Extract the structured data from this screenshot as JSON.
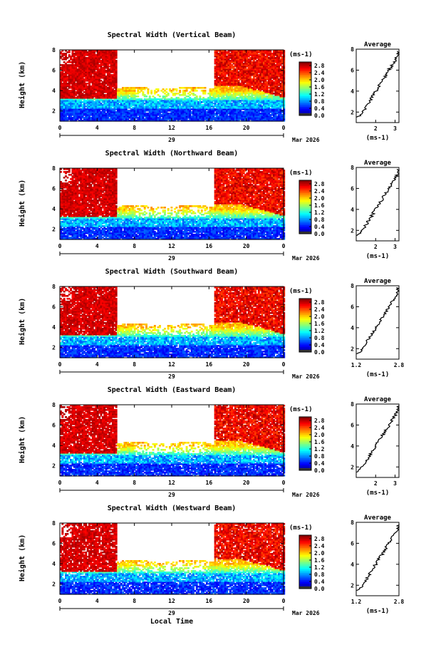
{
  "figure": {
    "x_axis_title": "Local Time",
    "month_label": "Mar 2026",
    "day_label": "29",
    "x_ticks": [
      "0",
      "4",
      "8",
      "12",
      "16",
      "20",
      "0"
    ],
    "y_ticks": [
      "2",
      "4",
      "6",
      "8"
    ],
    "height_label": "Height (km)",
    "colorbar_unit": "(ms-1)",
    "colorbar_ticks": [
      "2.8",
      "2.4",
      "2.0",
      "1.6",
      "1.2",
      "0.8",
      "0.4",
      "0.0"
    ],
    "average_title": "Average",
    "average_unit": "(ms-1)"
  },
  "chart_data": [
    {
      "type": "heatmap",
      "title": "Spectral Width (Vertical Beam)",
      "ylabel": "Height (km)",
      "xlabel": "Local Time",
      "x_range": [
        0,
        24
      ],
      "y_range": [
        1,
        8
      ],
      "colorbar_range": [
        0,
        3.0
      ],
      "profile": {
        "ticks": [
          "2",
          "3"
        ],
        "xlim": [
          1,
          3.2
        ]
      }
    },
    {
      "type": "heatmap",
      "title": "Spectral Width (Northward Beam)",
      "ylabel": "Height (km)",
      "xlabel": "Local Time",
      "x_range": [
        0,
        24
      ],
      "y_range": [
        1,
        8
      ],
      "colorbar_range": [
        0,
        3.0
      ],
      "profile": {
        "ticks": [
          "2",
          "3"
        ],
        "xlim": [
          1,
          3.2
        ]
      }
    },
    {
      "type": "heatmap",
      "title": "Spectral Width (Southward Beam)",
      "ylabel": "Height (km)",
      "xlabel": "Local Time",
      "x_range": [
        0,
        24
      ],
      "y_range": [
        1,
        8
      ],
      "colorbar_range": [
        0,
        3.0
      ],
      "profile": {
        "ticks": [
          "1.2",
          "2.8"
        ],
        "xlim": [
          1.2,
          2.8
        ]
      }
    },
    {
      "type": "heatmap",
      "title": "Spectral Width (Eastward Beam)",
      "ylabel": "Height (km)",
      "xlabel": "Local Time",
      "x_range": [
        0,
        24
      ],
      "y_range": [
        1,
        8
      ],
      "colorbar_range": [
        0,
        3.0
      ],
      "profile": {
        "ticks": [
          "2",
          "3"
        ],
        "xlim": [
          1,
          3.2
        ]
      }
    },
    {
      "type": "heatmap",
      "title": "Spectral Width (Westward Beam)",
      "ylabel": "Height (km)",
      "xlabel": "Local Time",
      "x_range": [
        0,
        24
      ],
      "y_range": [
        1,
        8
      ],
      "colorbar_range": [
        0,
        3.0
      ],
      "profile": {
        "ticks": [
          "1.2",
          "2.8"
        ],
        "xlim": [
          1.2,
          2.8
        ]
      }
    }
  ]
}
